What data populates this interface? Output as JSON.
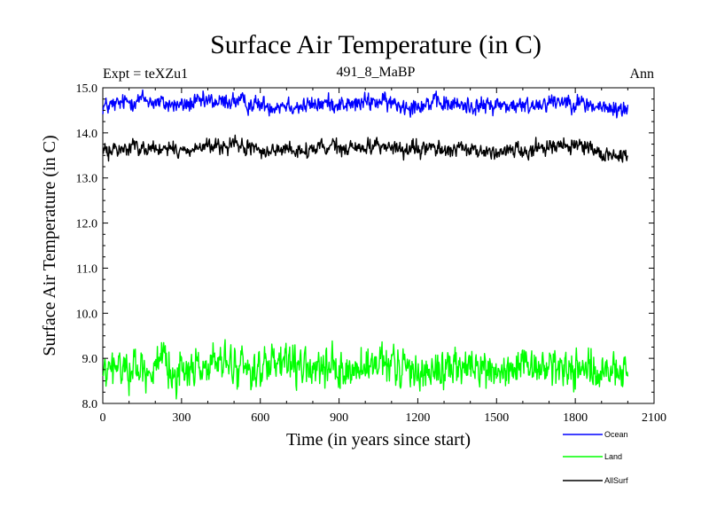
{
  "chart_data": {
    "type": "line",
    "title": "Surface Air Temperature (in C)",
    "subtitle_left": "Expt = teXZu1",
    "subtitle_center": "491_8_MaBP",
    "subtitle_right": "Ann",
    "xlabel": "Time (in years since start)",
    "ylabel": "Surface Air Temperature (in C)",
    "xlim": [
      0,
      2100
    ],
    "ylim": [
      8.0,
      15.0
    ],
    "xticks": [
      0,
      300,
      600,
      900,
      1200,
      1500,
      1800,
      2100
    ],
    "xtick_labels": [
      "0",
      "300",
      "600",
      "900",
      "1200",
      "1500",
      "1800",
      "2100"
    ],
    "yticks": [
      8.0,
      9.0,
      10.0,
      11.0,
      12.0,
      13.0,
      14.0,
      15.0
    ],
    "ytick_labels": [
      "8.0",
      "9.0",
      "10.0",
      "11.0",
      "12.0",
      "13.0",
      "14.0",
      "15.0"
    ],
    "x": [
      0,
      50,
      100,
      150,
      200,
      250,
      300,
      350,
      400,
      450,
      500,
      550,
      600,
      650,
      700,
      750,
      800,
      850,
      900,
      950,
      1000,
      1050,
      1100,
      1150,
      1200,
      1250,
      1300,
      1350,
      1400,
      1450,
      1500,
      1550,
      1600,
      1650,
      1700,
      1750,
      1800,
      1850,
      1900,
      1950,
      2000
    ],
    "series": [
      {
        "name": "Ocean",
        "color": "#0000ff",
        "mean": 14.64,
        "noise": 0.09,
        "values": [
          14.58,
          14.62,
          14.7,
          14.75,
          14.68,
          14.63,
          14.61,
          14.66,
          14.7,
          14.67,
          14.72,
          14.65,
          14.62,
          14.6,
          14.64,
          14.58,
          14.62,
          14.66,
          14.65,
          14.62,
          14.68,
          14.7,
          14.65,
          14.6,
          14.63,
          14.66,
          14.64,
          14.62,
          14.6,
          14.59,
          14.62,
          14.6,
          14.58,
          14.63,
          14.7,
          14.72,
          14.68,
          14.62,
          14.55,
          14.52,
          14.53
        ]
      },
      {
        "name": "Land",
        "color": "#00ff00",
        "mean": 8.77,
        "noise": 0.2,
        "values": [
          8.62,
          8.78,
          8.82,
          8.75,
          8.8,
          8.78,
          8.72,
          8.8,
          8.85,
          8.88,
          8.83,
          8.79,
          8.75,
          8.82,
          8.86,
          8.78,
          8.75,
          8.72,
          8.7,
          8.74,
          8.76,
          8.8,
          8.82,
          8.78,
          8.74,
          8.72,
          8.76,
          8.8,
          8.78,
          8.75,
          8.72,
          8.7,
          8.74,
          8.78,
          8.82,
          8.8,
          8.78,
          8.76,
          8.62,
          8.68,
          8.7
        ]
      },
      {
        "name": "AllSurf",
        "color": "#000000",
        "mean": 13.65,
        "noise": 0.08,
        "values": [
          13.58,
          13.62,
          13.68,
          13.7,
          13.65,
          13.62,
          13.6,
          13.66,
          13.7,
          13.68,
          13.72,
          13.66,
          13.62,
          13.6,
          13.64,
          13.58,
          13.62,
          13.68,
          13.66,
          13.63,
          13.7,
          13.74,
          13.68,
          13.6,
          13.62,
          13.66,
          13.64,
          13.62,
          13.6,
          13.58,
          13.6,
          13.62,
          13.6,
          13.66,
          13.72,
          13.74,
          13.7,
          13.62,
          13.52,
          13.5,
          13.52
        ]
      }
    ],
    "legend_position": "bottom-right"
  }
}
